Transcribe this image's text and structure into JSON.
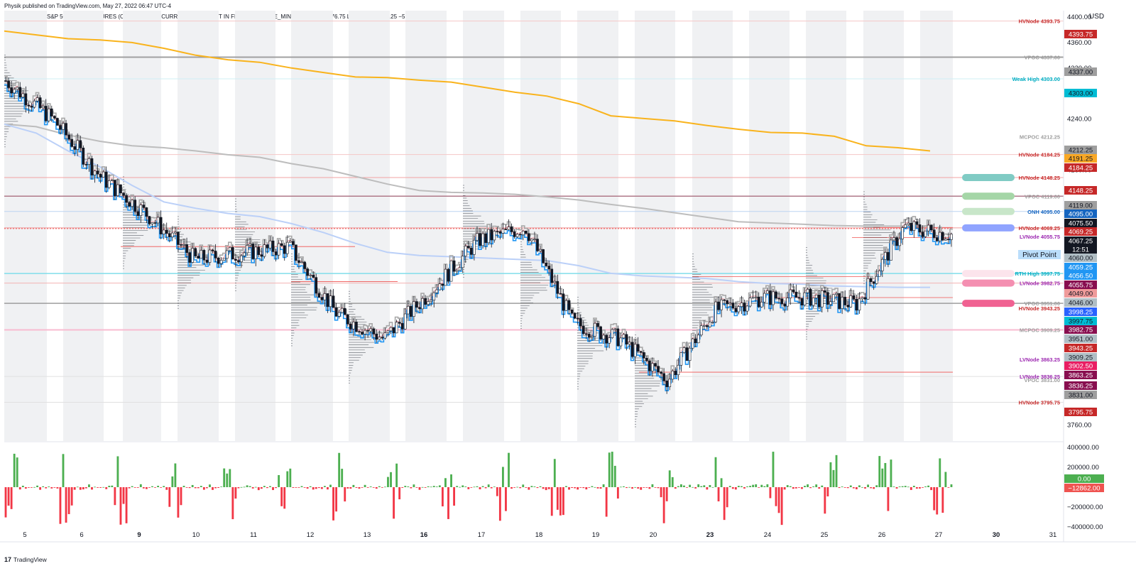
{
  "header": {
    "publisher": "Physik published on TradingView.com, May 27, 2022 06:47 UTC-4",
    "symbol_line": "MICRO E-MINI S&P 500 INDEX FUTURES (CONTINUOUS: CURRENT CONTRACT IN FRONT), 65, CME_MINI   O4072.75  H4076.75  L4064.75  C4067.25  −5.25 (−0.13%)"
  },
  "footer": {
    "logo": "17",
    "brand": "TradingView"
  },
  "price_axis": {
    "currency": "USD",
    "ticks": [
      "4360.00",
      "4320.00",
      "4280.00",
      "4240.00",
      "4160.00",
      "3760.00"
    ],
    "partial_top_tick": "4400.00"
  },
  "volume_axis": {
    "ticks": [
      "400000.00",
      "200000.00",
      "−200000.00",
      "−400000.00"
    ]
  },
  "time_axis": {
    "labels": [
      "5",
      "6",
      "9",
      "10",
      "11",
      "12",
      "13",
      "16",
      "17",
      "18",
      "19",
      "20",
      "23",
      "24",
      "25",
      "26",
      "27",
      "30",
      "31"
    ],
    "bold": [
      "9",
      "16",
      "23",
      "30"
    ]
  },
  "level_labels": [
    {
      "text": "HVNode 4393.75",
      "color": "#c62828"
    },
    {
      "text": "VPOC 4337.00",
      "color": "#9e9e9e"
    },
    {
      "text": "Weak High 4303.00",
      "color": "#00acc1"
    },
    {
      "text": "MCPOC 4212.25",
      "color": "#9e9e9e"
    },
    {
      "text": "HVNode 4184.25",
      "color": "#c62828"
    },
    {
      "text": "HVNode 4148.25",
      "color": "#c62828"
    },
    {
      "text": "VPOC 4119.00",
      "color": "#9e9e9e"
    },
    {
      "text": "ONH 4095.00",
      "color": "#1565c0"
    },
    {
      "text": "HVNode 4069.25",
      "color": "#c62828"
    },
    {
      "text": "LVNode 4055.75",
      "color": "#9c27b0"
    },
    {
      "text": "RTH High 3997.75",
      "color": "#00acc1"
    },
    {
      "text": "LVNode 3982.75",
      "color": "#9c27b0"
    },
    {
      "text": "VPOC 3951.00",
      "color": "#9e9e9e"
    },
    {
      "text": "HVNode 3943.25",
      "color": "#c62828"
    },
    {
      "text": "MCPOC 3909.25",
      "color": "#9e9e9e"
    },
    {
      "text": "LVNode 3863.25",
      "color": "#9c27b0"
    },
    {
      "text": "LVNode 3836.25",
      "color": "#9c27b0"
    },
    {
      "text": "VPOC 3831.00",
      "color": "#9e9e9e"
    },
    {
      "text": "HVNode 3795.75",
      "color": "#c62828"
    }
  ],
  "price_badges": [
    {
      "text": "4393.75",
      "bg": "#c62828",
      "fg": "#ffffff"
    },
    {
      "text": "4337.00",
      "bg": "#9e9e9e",
      "fg": "#131722"
    },
    {
      "text": "4303.00",
      "bg": "#00bcd4",
      "fg": "#131722"
    },
    {
      "text": "4212.25",
      "bg": "#9e9e9e",
      "fg": "#131722"
    },
    {
      "text": "4191.25",
      "bg": "#f9a825",
      "fg": "#131722"
    },
    {
      "text": "4184.25",
      "bg": "#c62828",
      "fg": "#ffffff"
    },
    {
      "text": "4148.25",
      "bg": "#c62828",
      "fg": "#ffffff"
    },
    {
      "text": "4119.00",
      "bg": "#9e9e9e",
      "fg": "#131722"
    },
    {
      "text": "4095.00",
      "bg": "#1565c0",
      "fg": "#ffffff"
    },
    {
      "text": "4075.50",
      "bg": "#131722",
      "fg": "#ffffff"
    },
    {
      "text": "4069.25",
      "bg": "#c62828",
      "fg": "#ffffff"
    },
    {
      "text": "4067.25",
      "bg": "#131722",
      "fg": "#ffffff"
    },
    {
      "text": "12:51",
      "bg": "#131722",
      "fg": "#ffffff"
    },
    {
      "text": "4060.00",
      "bg": "#b0bec5",
      "fg": "#131722"
    },
    {
      "text": "4059.25",
      "bg": "#2196f3",
      "fg": "#ffffff"
    },
    {
      "text": "4056.50",
      "bg": "#2196f3",
      "fg": "#ffffff"
    },
    {
      "text": "4055.75",
      "bg": "#880e4f",
      "fg": "#ffffff"
    },
    {
      "text": "4049.00",
      "bg": "#ef9a9a",
      "fg": "#131722"
    },
    {
      "text": "4046.00",
      "bg": "#b0bec5",
      "fg": "#131722"
    },
    {
      "text": "3998.25",
      "bg": "#2962ff",
      "fg": "#ffffff"
    },
    {
      "text": "3997.75",
      "bg": "#00bcd4",
      "fg": "#131722"
    },
    {
      "text": "3982.75",
      "bg": "#880e4f",
      "fg": "#ffffff"
    },
    {
      "text": "3951.00",
      "bg": "#b0bec5",
      "fg": "#131722"
    },
    {
      "text": "3943.25",
      "bg": "#c62828",
      "fg": "#ffffff"
    },
    {
      "text": "3909.25",
      "bg": "#b0bec5",
      "fg": "#131722"
    },
    {
      "text": "3902.50",
      "bg": "#e91e63",
      "fg": "#ffffff"
    },
    {
      "text": "3863.25",
      "bg": "#880e4f",
      "fg": "#ffffff"
    },
    {
      "text": "3836.25",
      "bg": "#880e4f",
      "fg": "#ffffff"
    },
    {
      "text": "3831.00",
      "bg": "#9e9e9e",
      "fg": "#131722"
    },
    {
      "text": "3795.75",
      "bg": "#c62828",
      "fg": "#ffffff"
    }
  ],
  "pivot_label": "Pivot Point",
  "volume_badges": [
    {
      "text": "0.00",
      "bg": "#4caf50",
      "fg": "#ffffff"
    },
    {
      "text": "−12862.00",
      "bg": "#ef5350",
      "fg": "#ffffff"
    }
  ],
  "zone_colors": [
    "#80cbc4",
    "#a5d6a7",
    "#c8e6c9",
    "#90a4ff",
    "#fce4ec",
    "#f48fb1",
    "#f06292"
  ],
  "colors": {
    "candle_up": "#ffffff",
    "candle_down": "#131722",
    "vwap": "#2196f3",
    "light_blue": "#bbd0f8",
    "orange": "#f9b31c",
    "gray_line": "#bdbdbd",
    "vol_up": "#4caf50",
    "vol_down": "#f23645",
    "session_shade": "#f0f1f3",
    "profile": "#131722",
    "hline_red": "#ef5350",
    "hline_gray": "#9e9e9e"
  },
  "chart_data": {
    "type": "candlestick",
    "symbol": "MICRO E-MINI S&P 500 INDEX FUTURES",
    "interval": "65",
    "ohlc_last": {
      "open": 4072.75,
      "high": 4076.75,
      "low": 4064.75,
      "close": 4067.25,
      "change": -5.25,
      "change_pct": -0.13
    },
    "ylim": [
      3735,
      4410
    ],
    "sessions": [
      "5",
      "6",
      "9",
      "10",
      "11",
      "12",
      "13",
      "16",
      "17",
      "18",
      "19",
      "20",
      "23",
      "24",
      "25",
      "26",
      "27"
    ],
    "day_close_path": [
      4300,
      4240,
      4150,
      4090,
      4020,
      4030,
      4040,
      3935,
      3895,
      3970,
      4050,
      4070,
      3920,
      3895,
      3830,
      3940,
      3960,
      3960,
      3950,
      4070,
      4059
    ],
    "levels": [
      {
        "name": "HVNode",
        "price": 4393.75
      },
      {
        "name": "VPOC",
        "price": 4337.0
      },
      {
        "name": "Weak High",
        "price": 4303.0
      },
      {
        "name": "MCPOC",
        "price": 4212.25
      },
      {
        "name": "HVNode",
        "price": 4184.25
      },
      {
        "name": "HVNode",
        "price": 4148.25
      },
      {
        "name": "VPOC",
        "price": 4119.0
      },
      {
        "name": "ONH",
        "price": 4095.0
      },
      {
        "name": "HVNode",
        "price": 4069.25
      },
      {
        "name": "LVNode",
        "price": 4055.75
      },
      {
        "name": "RTH High",
        "price": 3997.75
      },
      {
        "name": "LVNode",
        "price": 3982.75
      },
      {
        "name": "VPOC",
        "price": 3951.0
      },
      {
        "name": "HVNode",
        "price": 3943.25
      },
      {
        "name": "MCPOC",
        "price": 3909.25
      },
      {
        "name": "LVNode",
        "price": 3863.25
      },
      {
        "name": "LVNode",
        "price": 3836.25
      },
      {
        "name": "VPOC",
        "price": 3831.0
      },
      {
        "name": "HVNode",
        "price": 3795.75
      }
    ],
    "moving_average_orange": [
      4378,
      4372,
      4366,
      4364,
      4360,
      4351,
      4340,
      4333,
      4329,
      4320,
      4313,
      4306,
      4305,
      4301,
      4298,
      4290,
      4282,
      4276,
      4264,
      4245,
      4241,
      4237,
      4230,
      4224,
      4219,
      4218,
      4213,
      4198,
      4195,
      4190
    ],
    "moving_average_gray": [
      4232,
      4228,
      4215,
      4205,
      4198,
      4195,
      4190,
      4184,
      4180,
      4170,
      4162,
      4150,
      4138,
      4128,
      4125,
      4124,
      4122,
      4118,
      4113,
      4106,
      4100,
      4093,
      4086,
      4079,
      4077,
      4075,
      4073,
      4072,
      4072,
      4072
    ],
    "moving_average_lightblue": [
      4232,
      4218,
      4190,
      4165,
      4136,
      4110,
      4100,
      4092,
      4087,
      4076,
      4062,
      4045,
      4031,
      4026,
      4024,
      4022,
      4020,
      4018,
      4010,
      3998,
      3994,
      3992,
      3990,
      3985,
      3982,
      3981,
      3978,
      3977,
      3976,
      3976
    ],
    "volume_delta_ylim": [
      -450000,
      450000
    ]
  }
}
